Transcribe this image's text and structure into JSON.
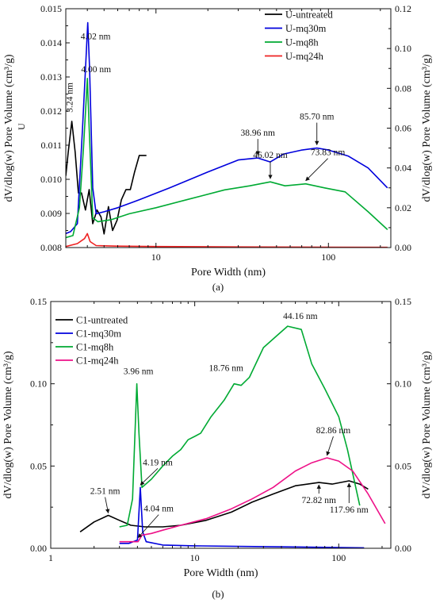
{
  "chart_data": [
    {
      "id": "a",
      "caption": "(a)",
      "type": "line",
      "x_scale": "log",
      "xlim": [
        3,
        230
      ],
      "xlabel": "Pore Width (nm)",
      "x_ticks": [
        {
          "v": 10,
          "label": "10"
        },
        {
          "v": 100,
          "label": "100"
        }
      ],
      "ylabel_left": "dV/dlog(w) Pore Volume (cm³/g)",
      "ylim_left": [
        0.008,
        0.015
      ],
      "yticks_left": [
        "0.008",
        "0.009",
        "0.010",
        "0.011",
        "0.012",
        "0.013",
        "0.014",
        "0.015"
      ],
      "ylabel_right": "dV/dlog(w) Pore Volume (cm³/g)",
      "ylim_right": [
        0,
        0.12
      ],
      "yticks_right": [
        "0.00",
        "0.02",
        "0.04",
        "0.06",
        "0.08",
        "0.10",
        "0.12"
      ],
      "stray_label": "U",
      "legend_position": "top-right",
      "series": [
        {
          "name": "U-untreated",
          "color": "#000000",
          "axis": "left",
          "points": [
            [
              3.0,
              0.0101
            ],
            [
              3.1,
              0.0108
            ],
            [
              3.25,
              0.0117
            ],
            [
              3.4,
              0.0108
            ],
            [
              3.55,
              0.0096
            ],
            [
              3.7,
              0.0096
            ],
            [
              3.9,
              0.0091
            ],
            [
              4.1,
              0.0097
            ],
            [
              4.3,
              0.0087
            ],
            [
              4.55,
              0.0091
            ],
            [
              4.8,
              0.0089
            ],
            [
              5.0,
              0.0084
            ],
            [
              5.3,
              0.0092
            ],
            [
              5.6,
              0.0085
            ],
            [
              5.95,
              0.0088
            ],
            [
              6.3,
              0.0094
            ],
            [
              6.7,
              0.0097
            ],
            [
              7.1,
              0.0097
            ],
            [
              7.5,
              0.0102
            ],
            [
              8.0,
              0.0107
            ],
            [
              8.8,
              0.0107
            ]
          ]
        },
        {
          "name": "U-mq30m",
          "color": "#0000dd",
          "axis": "right",
          "points": [
            [
              3.0,
              0.007
            ],
            [
              3.2,
              0.008
            ],
            [
              3.5,
              0.012
            ],
            [
              3.75,
              0.06
            ],
            [
              3.93,
              0.095
            ],
            [
              4.02,
              0.113
            ],
            [
              4.12,
              0.09
            ],
            [
              4.3,
              0.03
            ],
            [
              4.5,
              0.017
            ],
            [
              5.0,
              0.018
            ],
            [
              6.0,
              0.02
            ],
            [
              8.0,
              0.024
            ],
            [
              12.0,
              0.03
            ],
            [
              20.0,
              0.038
            ],
            [
              30.0,
              0.044
            ],
            [
              38.96,
              0.045
            ],
            [
              46.0,
              0.043
            ],
            [
              55.0,
              0.047
            ],
            [
              70.0,
              0.049
            ],
            [
              85.7,
              0.05
            ],
            [
              100.0,
              0.049
            ],
            [
              130.0,
              0.046
            ],
            [
              170.0,
              0.04
            ],
            [
              220.0,
              0.03
            ]
          ]
        },
        {
          "name": "U-mq8h",
          "color": "#00aa33",
          "axis": "right",
          "points": [
            [
              3.0,
              0.005
            ],
            [
              3.3,
              0.006
            ],
            [
              3.6,
              0.02
            ],
            [
              3.8,
              0.05
            ],
            [
              4.0,
              0.085
            ],
            [
              4.1,
              0.06
            ],
            [
              4.3,
              0.015
            ],
            [
              4.6,
              0.013
            ],
            [
              5.5,
              0.014
            ],
            [
              7.0,
              0.017
            ],
            [
              10.0,
              0.02
            ],
            [
              15.0,
              0.024
            ],
            [
              25.0,
              0.029
            ],
            [
              35.0,
              0.031
            ],
            [
              46.02,
              0.033
            ],
            [
              56.0,
              0.031
            ],
            [
              73.83,
              0.032
            ],
            [
              95.0,
              0.03
            ],
            [
              125.0,
              0.028
            ],
            [
              170.0,
              0.018
            ],
            [
              220.0,
              0.009
            ]
          ]
        },
        {
          "name": "U-mq24h",
          "color": "#ee2222",
          "axis": "right",
          "points": [
            [
              3.0,
              0.0005
            ],
            [
              3.5,
              0.002
            ],
            [
              3.85,
              0.0045
            ],
            [
              4.0,
              0.007
            ],
            [
              4.15,
              0.003
            ],
            [
              4.5,
              0.001
            ],
            [
              6.0,
              0.0007
            ],
            [
              10.0,
              0.0005
            ],
            [
              30.0,
              0.0003
            ],
            [
              100.0,
              0.0002
            ],
            [
              220.0,
              0.0001
            ]
          ]
        }
      ],
      "annotations": [
        {
          "text": "4.02 nm",
          "x": 4.02,
          "y": 0.113,
          "axis": "right",
          "arrow": false
        },
        {
          "text": "4.00 nm",
          "x": 4.0,
          "y": 0.085,
          "axis": "right",
          "arrow": false
        },
        {
          "text": "3.24 nm",
          "x": 3.25,
          "y": 0.0117,
          "axis": "left",
          "arrow": false,
          "rotate": true
        },
        {
          "text": "38.96 nm",
          "x": 38.96,
          "y": 0.045,
          "axis": "right",
          "arrow": true
        },
        {
          "text": "85.70 nm",
          "x": 85.7,
          "y": 0.05,
          "axis": "right",
          "arrow": true
        },
        {
          "text": "46.02 nm",
          "x": 46.02,
          "y": 0.033,
          "axis": "right",
          "arrow": true
        },
        {
          "text": "73.83 nm",
          "x": 73.83,
          "y": 0.032,
          "axis": "right",
          "arrow": true
        }
      ]
    },
    {
      "id": "b",
      "caption": "(b)",
      "type": "line",
      "x_scale": "log",
      "xlim": [
        1,
        230
      ],
      "xlabel": "Pore Width (nm)",
      "x_ticks": [
        {
          "v": 1,
          "label": "1"
        },
        {
          "v": 10,
          "label": "10"
        },
        {
          "v": 100,
          "label": "100"
        }
      ],
      "ylabel_left": "dV/dlog(w) Pore Volume (cm³/g)",
      "ylim_left": [
        0,
        0.15
      ],
      "yticks_left": [
        "0.00",
        "0.05",
        "0.10",
        "0.15"
      ],
      "ylabel_right": "dV/dlog(w) Pore Volume (cm³/g)",
      "ylim_right": [
        0,
        0.15
      ],
      "yticks_right": [
        "0.00",
        "0.05",
        "0.10",
        "0.15"
      ],
      "legend_position": "top-left",
      "series": [
        {
          "name": "C1-untreated",
          "color": "#000000",
          "axis": "left",
          "points": [
            [
              1.6,
              0.01
            ],
            [
              2.0,
              0.016
            ],
            [
              2.51,
              0.02
            ],
            [
              3.0,
              0.017
            ],
            [
              3.6,
              0.014
            ],
            [
              4.5,
              0.013
            ],
            [
              6.0,
              0.013
            ],
            [
              8.0,
              0.014
            ],
            [
              12.0,
              0.017
            ],
            [
              18.0,
              0.022
            ],
            [
              25.0,
              0.028
            ],
            [
              35.0,
              0.033
            ],
            [
              50.0,
              0.038
            ],
            [
              72.82,
              0.04
            ],
            [
              90.0,
              0.039
            ],
            [
              117.96,
              0.041
            ],
            [
              140.0,
              0.039
            ],
            [
              160.0,
              0.036
            ]
          ]
        },
        {
          "name": "C1-mq30m",
          "color": "#0000dd",
          "axis": "left",
          "points": [
            [
              3.0,
              0.003
            ],
            [
              3.5,
              0.003
            ],
            [
              4.0,
              0.005
            ],
            [
              4.19,
              0.037
            ],
            [
              4.35,
              0.01
            ],
            [
              4.6,
              0.004
            ],
            [
              6.0,
              0.002
            ],
            [
              10.0,
              0.0015
            ],
            [
              30.0,
              0.001
            ],
            [
              100.0,
              0.0005
            ],
            [
              150.0,
              0.0003
            ]
          ]
        },
        {
          "name": "C1-mq8h",
          "color": "#00aa33",
          "axis": "left",
          "points": [
            [
              3.0,
              0.013
            ],
            [
              3.4,
              0.014
            ],
            [
              3.7,
              0.03
            ],
            [
              3.96,
              0.1
            ],
            [
              4.1,
              0.07
            ],
            [
              4.3,
              0.037
            ],
            [
              5.0,
              0.042
            ],
            [
              6.0,
              0.05
            ],
            [
              7.0,
              0.056
            ],
            [
              8.0,
              0.06
            ],
            [
              9.0,
              0.066
            ],
            [
              10.0,
              0.068
            ],
            [
              11.0,
              0.07
            ],
            [
              13.0,
              0.08
            ],
            [
              16.0,
              0.09
            ],
            [
              18.76,
              0.1
            ],
            [
              21.0,
              0.099
            ],
            [
              24.0,
              0.104
            ],
            [
              30.0,
              0.122
            ],
            [
              38.0,
              0.13
            ],
            [
              44.16,
              0.135
            ],
            [
              55.0,
              0.133
            ],
            [
              65.0,
              0.112
            ],
            [
              80.0,
              0.097
            ],
            [
              100.0,
              0.08
            ],
            [
              115.0,
              0.06
            ],
            [
              140.0,
              0.026
            ]
          ]
        },
        {
          "name": "C1-mq24h",
          "color": "#ee1188",
          "axis": "left",
          "points": [
            [
              3.0,
              0.004
            ],
            [
              3.5,
              0.004
            ],
            [
              4.04,
              0.004
            ],
            [
              4.3,
              0.008
            ],
            [
              5.0,
              0.009
            ],
            [
              6.0,
              0.011
            ],
            [
              8.0,
              0.014
            ],
            [
              12.0,
              0.018
            ],
            [
              18.0,
              0.024
            ],
            [
              25.0,
              0.03
            ],
            [
              35.0,
              0.037
            ],
            [
              50.0,
              0.047
            ],
            [
              65.0,
              0.052
            ],
            [
              82.86,
              0.055
            ],
            [
              100.0,
              0.053
            ],
            [
              125.0,
              0.047
            ],
            [
              160.0,
              0.033
            ],
            [
              210.0,
              0.015
            ]
          ]
        }
      ],
      "annotations": [
        {
          "text": "44.16 nm",
          "x": 44.16,
          "y": 0.135,
          "arrow": false
        },
        {
          "text": "18.76 nm",
          "x": 18.76,
          "y": 0.1,
          "arrow": false
        },
        {
          "text": "3.96 nm",
          "x": 3.96,
          "y": 0.1,
          "arrow": false
        },
        {
          "text": "82.86 nm",
          "x": 82.86,
          "y": 0.055,
          "arrow": true
        },
        {
          "text": "4.19 nm",
          "x": 4.19,
          "y": 0.037,
          "arrow": true
        },
        {
          "text": "2.51 nm",
          "x": 2.51,
          "y": 0.02,
          "arrow": true
        },
        {
          "text": "4.04 nm",
          "x": 4.04,
          "y": 0.005,
          "arrow": true
        },
        {
          "text": "72.82 nm",
          "x": 72.82,
          "y": 0.04,
          "arrow": true
        },
        {
          "text": "117.96 nm",
          "x": 117.96,
          "y": 0.041,
          "arrow": true
        }
      ]
    }
  ]
}
